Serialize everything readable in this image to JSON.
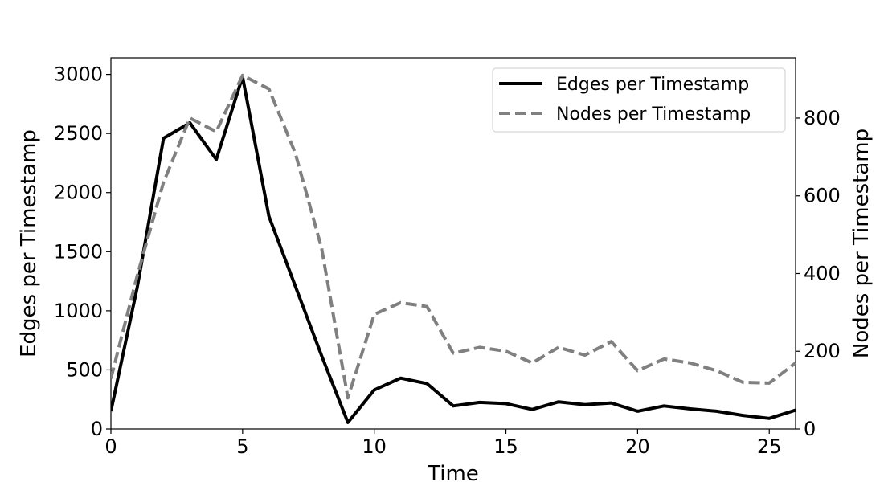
{
  "chart_data": {
    "type": "line",
    "title": "",
    "xlabel": "Time",
    "ylabel_left": "Edges per Timestamp",
    "ylabel_right": "Nodes per Timestamp",
    "xlim": [
      0,
      26
    ],
    "ylim_left": [
      0,
      3140
    ],
    "ylim_right": [
      0,
      955
    ],
    "x_ticks": [
      0,
      5,
      10,
      15,
      20,
      25
    ],
    "y_left_ticks": [
      0,
      500,
      1000,
      1500,
      2000,
      2500,
      3000
    ],
    "y_right_ticks": [
      0,
      200,
      400,
      600,
      800
    ],
    "grid": false,
    "legend_position": "top-right",
    "x": [
      0,
      1,
      2,
      3,
      4,
      5,
      6,
      7,
      8,
      9,
      10,
      11,
      12,
      13,
      14,
      15,
      16,
      17,
      18,
      19,
      20,
      21,
      22,
      23,
      24,
      25,
      26
    ],
    "series": [
      {
        "name": "Edges per Timestamp",
        "axis": "left",
        "color": "#000000",
        "dash": "solid",
        "values": [
          150,
          1200,
          2460,
          2590,
          2280,
          2980,
          1800,
          1210,
          620,
          55,
          330,
          430,
          385,
          195,
          225,
          215,
          165,
          230,
          205,
          220,
          150,
          195,
          170,
          150,
          115,
          90,
          160
        ]
      },
      {
        "name": "Nodes per Timestamp",
        "axis": "right",
        "color": "#808080",
        "dash": "dashed",
        "values": [
          130,
          395,
          635,
          800,
          765,
          910,
          875,
          710,
          465,
          80,
          295,
          325,
          315,
          195,
          210,
          200,
          170,
          210,
          190,
          225,
          150,
          180,
          170,
          150,
          120,
          118,
          170
        ]
      }
    ]
  }
}
